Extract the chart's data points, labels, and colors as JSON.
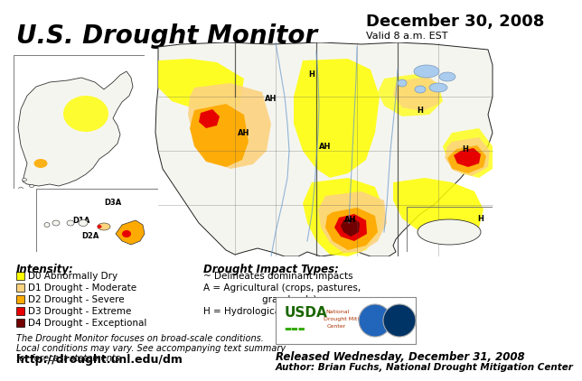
{
  "title": "U.S. Drought Monitor",
  "date_title": "December 30, 2008",
  "valid_text": "Valid 8 a.m. EST",
  "bg_color": "#ffffff",
  "intensity_title": "Intensity:",
  "intensity_items": [
    {
      "label": "D0 Abnormally Dry",
      "color": "#ffff00"
    },
    {
      "label": "D1 Drought - Moderate",
      "color": "#fcd37f"
    },
    {
      "label": "D2 Drought - Severe",
      "color": "#ffaa00"
    },
    {
      "label": "D3 Drought - Extreme",
      "color": "#e60000"
    },
    {
      "label": "D4 Drought - Exceptional",
      "color": "#730000"
    }
  ],
  "impact_title": "Drought Impact Types:",
  "impact_lines": [
    "~ Delineates dominant impacts",
    "A = Agricultural (crops, pastures,",
    "                    grasslands)",
    "H = Hydrological (water)"
  ],
  "footnote1": "The Drought Monitor focuses on broad-scale conditions.",
  "footnote2": "Local conditions may vary. See accompanying text summary",
  "footnote3": "for forecast statements.",
  "url": "http://drought.unl.edu/dm",
  "released": "Released Wednesday, December 31, 2008",
  "author": "Author: Brian Fuchs, National Drought Mitigation Center",
  "title_fontsize": 20,
  "date_fontsize": 13,
  "valid_fontsize": 8,
  "legend_fontsize": 7.5,
  "footnote_fontsize": 7,
  "url_fontsize": 9,
  "release_fontsize": 8.5,
  "author_fontsize": 7.5
}
